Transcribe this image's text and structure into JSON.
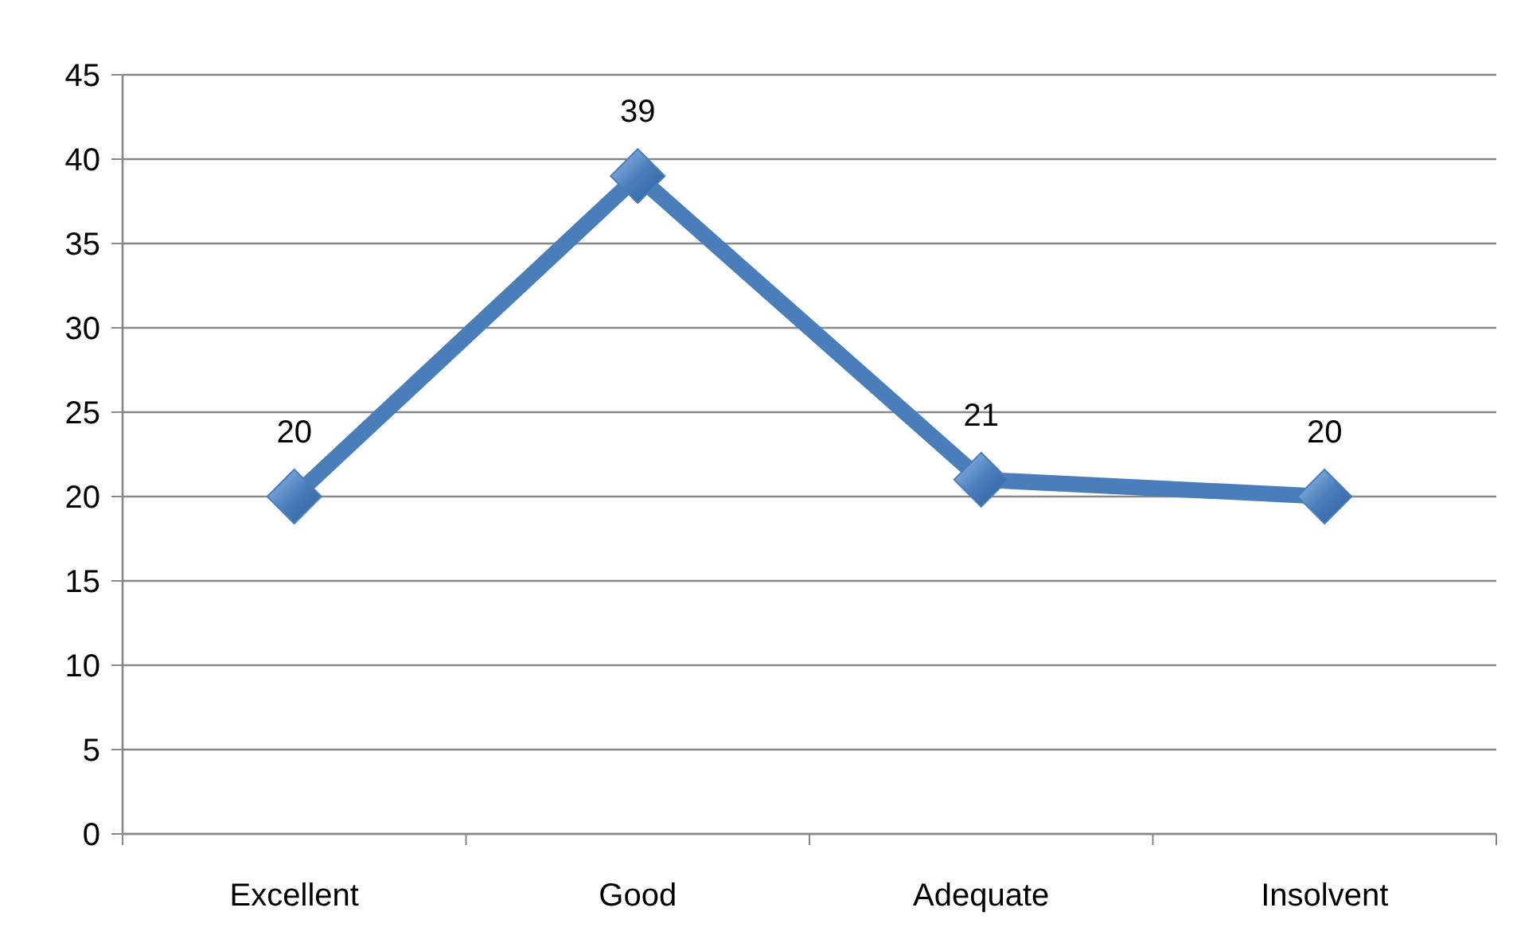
{
  "chart_data": {
    "type": "line",
    "categories": [
      "Excellent",
      "Good",
      "Adequate",
      "Insolvent"
    ],
    "series": [
      {
        "color": "#4a7ebb",
        "values": [
          20,
          39,
          21,
          20
        ]
      }
    ],
    "ylim": [
      0,
      45
    ],
    "yticks": [
      0,
      5,
      10,
      15,
      20,
      25,
      30,
      35,
      40,
      45
    ],
    "grid": "y",
    "marker": "diamond",
    "line_style": "solid",
    "data_labels": true
  }
}
